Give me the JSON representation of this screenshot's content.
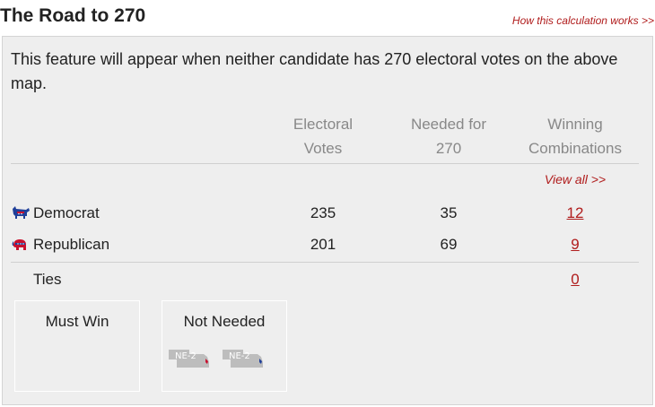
{
  "header": {
    "title": "The Road to 270",
    "how_link": "How this calculation works >>"
  },
  "intro": "This feature will appear when neither candidate has 270 electoral votes on the above map.",
  "columns": {
    "electoral": [
      "Electoral",
      "Votes"
    ],
    "needed": [
      "Needed for",
      "270"
    ],
    "winning": [
      "Winning",
      "Combinations"
    ]
  },
  "view_all": "View all >>",
  "parties": [
    {
      "name": "Democrat",
      "icon": "donkey-icon",
      "electoral_votes": "235",
      "needed": "35",
      "combinations": "12"
    },
    {
      "name": "Republican",
      "icon": "elephant-icon",
      "electoral_votes": "201",
      "needed": "69",
      "combinations": "9"
    }
  ],
  "ties": {
    "label": "Ties",
    "combinations": "0"
  },
  "must_win": {
    "title": "Must Win"
  },
  "not_needed": {
    "title": "Not Needed",
    "states": [
      {
        "label": "NE-2",
        "party_color": "#c8102e"
      },
      {
        "label": "NE-2",
        "party_color": "#1f3f99"
      }
    ]
  },
  "colors": {
    "accent_red": "#b01c1c",
    "democrat_blue": "#1f3f99",
    "republican_red": "#c8102e",
    "panel_bg": "#eeeeee"
  }
}
